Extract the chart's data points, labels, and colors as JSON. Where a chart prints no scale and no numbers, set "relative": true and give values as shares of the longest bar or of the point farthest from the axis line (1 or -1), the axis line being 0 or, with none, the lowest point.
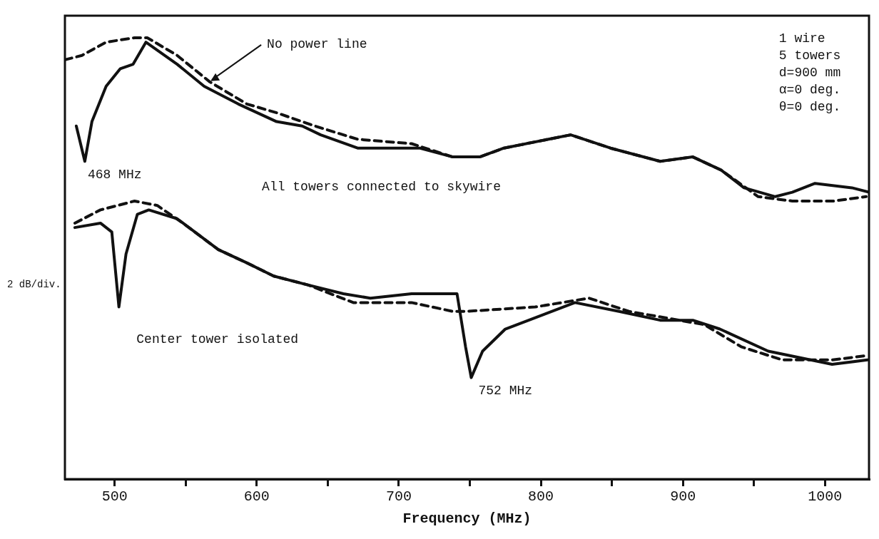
{
  "chart_data": {
    "type": "line",
    "relative": true,
    "xlabel": "Frequency (MHz)",
    "ylabel": "2 dB/div.",
    "xlim": [
      465,
      1031
    ],
    "xticks": [
      500,
      {
        "value": 550,
        "label": null
      },
      600,
      {
        "value": 650,
        "label": null
      },
      700,
      {
        "value": 750,
        "label": null
      },
      800,
      {
        "value": 850,
        "label": null
      },
      900,
      {
        "value": 950,
        "label": null
      },
      1000
    ],
    "series": [
      {
        "color": "#111111",
        "line_style": "solid",
        "x": [
          473,
          479,
          484,
          494,
          504,
          513,
          522,
          544,
          563,
          587,
          614,
          632,
          645,
          671,
          700,
          715,
          738,
          757,
          774,
          821,
          849,
          884,
          907,
          927,
          943,
          965,
          977,
          993,
          1019,
          1031
        ],
        "values": [
          0.8,
          0.72,
          0.81,
          0.89,
          0.93,
          0.94,
          0.99,
          0.94,
          0.89,
          0.85,
          0.81,
          0.8,
          0.78,
          0.75,
          0.75,
          0.75,
          0.73,
          0.73,
          0.75,
          0.78,
          0.75,
          0.72,
          0.73,
          0.7,
          0.66,
          0.64,
          0.65,
          0.67,
          0.66,
          0.65
        ]
      },
      {
        "color": "#111111",
        "line_style": "dashed",
        "x": [
          465,
          477,
          494,
          514,
          523,
          544,
          567,
          593,
          614,
          641,
          671,
          709,
          738,
          757,
          774,
          821,
          849,
          884,
          907,
          927,
          953,
          977,
          1006,
          1029
        ],
        "values": [
          0.95,
          0.96,
          0.99,
          1.0,
          1.0,
          0.96,
          0.9,
          0.85,
          0.83,
          0.8,
          0.77,
          0.76,
          0.73,
          0.73,
          0.75,
          0.78,
          0.75,
          0.72,
          0.73,
          0.7,
          0.64,
          0.63,
          0.63,
          0.64
        ]
      },
      {
        "color": "#111111",
        "line_style": "solid",
        "x": [
          472,
          490,
          498,
          503,
          508,
          516,
          524,
          544,
          573,
          593,
          612,
          636,
          661,
          680,
          709,
          738,
          741,
          747,
          751,
          759,
          775,
          824,
          855,
          884,
          907,
          926,
          960,
          1005,
          1030
        ],
        "values": [
          0.57,
          0.58,
          0.56,
          0.39,
          0.51,
          0.6,
          0.61,
          0.59,
          0.52,
          0.49,
          0.46,
          0.44,
          0.42,
          0.41,
          0.42,
          0.42,
          0.42,
          0.3,
          0.23,
          0.29,
          0.34,
          0.4,
          0.38,
          0.36,
          0.36,
          0.34,
          0.29,
          0.26,
          0.27
        ]
      },
      {
        "color": "#111111",
        "line_style": "dashed",
        "x": [
          472,
          490,
          514,
          530,
          548,
          573,
          593,
          612,
          636,
          668,
          709,
          738,
          747,
          796,
          834,
          862,
          915,
          941,
          970,
          1005,
          1030
        ],
        "values": [
          0.58,
          0.61,
          0.63,
          0.62,
          0.58,
          0.52,
          0.49,
          0.46,
          0.44,
          0.4,
          0.4,
          0.38,
          0.38,
          0.39,
          0.41,
          0.38,
          0.35,
          0.3,
          0.27,
          0.27,
          0.28
        ]
      }
    ],
    "annotations": [
      {
        "text": "No power line",
        "x": 567,
        "y": 0.9
      },
      {
        "text": "468 MHz",
        "x": 479,
        "y": 0.72
      },
      "All towers connected to skywire",
      "Center tower isolated",
      {
        "text": "752 MHz",
        "x": 751,
        "y": 0.23
      },
      "1 wire\n5 towers\nd=900 mm\nα=0 deg.\nθ=0 deg."
    ]
  }
}
